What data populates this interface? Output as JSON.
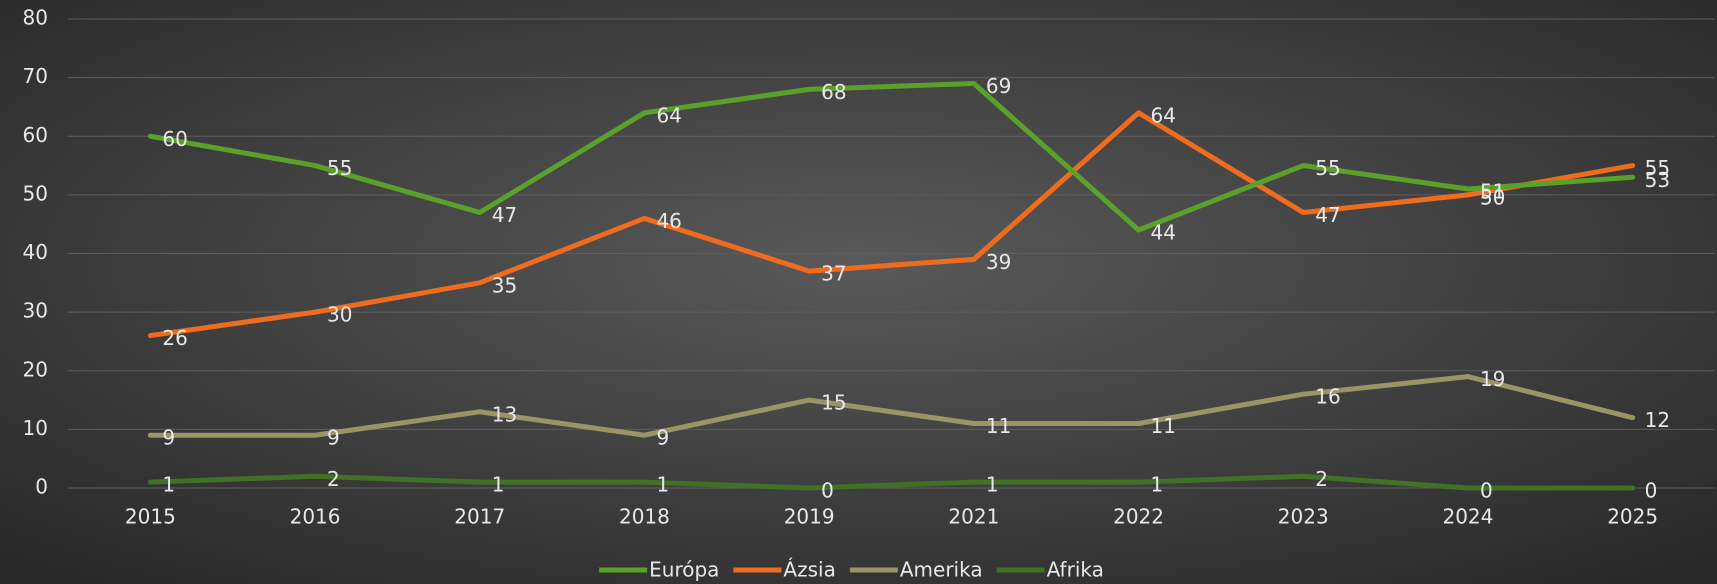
{
  "chart_data": {
    "type": "line",
    "categories": [
      "2015",
      "2016",
      "2017",
      "2018",
      "2019",
      "2021",
      "2022",
      "2023",
      "2024",
      "2025"
    ],
    "series": [
      {
        "name": "Európa",
        "color": "#5aa12c",
        "values": [
          60,
          55,
          47,
          64,
          68,
          69,
          44,
          55,
          51,
          53
        ]
      },
      {
        "name": "Ázsia",
        "color": "#ef6c1f",
        "values": [
          26,
          30,
          35,
          46,
          37,
          39,
          64,
          47,
          50,
          55
        ]
      },
      {
        "name": "Amerika",
        "color": "#9b9566",
        "values": [
          9,
          9,
          13,
          9,
          15,
          11,
          11,
          16,
          19,
          12
        ]
      },
      {
        "name": "Afrika",
        "color": "#3f7224",
        "values": [
          1,
          2,
          1,
          1,
          0,
          1,
          1,
          2,
          0,
          0
        ]
      }
    ],
    "ylim": [
      0,
      80
    ],
    "yticks": [
      0,
      10,
      20,
      30,
      40,
      50,
      60,
      70,
      80
    ],
    "grid": true,
    "legend": "bottom"
  }
}
